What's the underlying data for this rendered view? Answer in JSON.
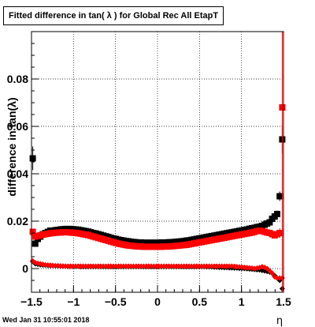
{
  "title": "Fitted difference in tan( λ ) for Global Rec All EtapT",
  "timestamp": "Wed Jan 31 10:55:01 2018",
  "chart_data": {
    "type": "scatter",
    "xlabel": "η",
    "ylabel": "difference in tan(λ)",
    "xlim": [
      -1.5,
      1.5
    ],
    "ylim": [
      -0.01,
      0.1
    ],
    "grid": true,
    "x_ticks": [
      -1.5,
      -1,
      -0.5,
      0,
      0.5,
      1,
      1.5
    ],
    "x_tick_labels": [
      "−1.5",
      "−1",
      "−0.5",
      "0",
      "0.5",
      "1",
      "1.5"
    ],
    "y_ticks": [
      0,
      0.02,
      0.04,
      0.06,
      0.08
    ],
    "y_tick_labels": [
      "0",
      "0.02",
      "0.04",
      "0.06",
      "0.08"
    ],
    "series": [
      {
        "color": "#000000",
        "marker": "square",
        "x": [
          -1.485,
          -1.455,
          -1.425,
          -1.395,
          -1.365,
          -1.335,
          -1.305,
          -1.275,
          -1.245,
          -1.215,
          -1.185,
          -1.155,
          -1.125,
          -1.095,
          -1.065,
          -1.035,
          -1.005,
          -0.975,
          -0.945,
          -0.915,
          -0.885,
          -0.855,
          -0.825,
          -0.795,
          -0.765,
          -0.735,
          -0.705,
          -0.675,
          -0.645,
          -0.615,
          -0.585,
          -0.555,
          -0.525,
          -0.495,
          -0.465,
          -0.435,
          -0.405,
          -0.375,
          -0.345,
          -0.315,
          -0.285,
          -0.255,
          -0.225,
          -0.195,
          -0.165,
          -0.135,
          -0.105,
          -0.075,
          -0.045,
          -0.015,
          0.015,
          0.045,
          0.075,
          0.105,
          0.135,
          0.165,
          0.195,
          0.225,
          0.255,
          0.285,
          0.315,
          0.345,
          0.375,
          0.405,
          0.435,
          0.465,
          0.495,
          0.525,
          0.555,
          0.585,
          0.615,
          0.645,
          0.675,
          0.705,
          0.735,
          0.765,
          0.795,
          0.825,
          0.855,
          0.885,
          0.915,
          0.945,
          0.975,
          1.005,
          1.035,
          1.065,
          1.095,
          1.125,
          1.155,
          1.185,
          1.215,
          1.245,
          1.275,
          1.305,
          1.335,
          1.365,
          1.395,
          1.425,
          1.455,
          1.485
        ],
        "y": [
          0.0465,
          0.0105,
          0.0125,
          0.0135,
          0.0145,
          0.015,
          0.0155,
          0.016,
          0.016,
          0.0162,
          0.0163,
          0.0165,
          0.0166,
          0.0167,
          0.0167,
          0.0167,
          0.0166,
          0.0165,
          0.0164,
          0.0162,
          0.016,
          0.0158,
          0.0156,
          0.0153,
          0.015,
          0.0148,
          0.0145,
          0.0142,
          0.0139,
          0.0136,
          0.0133,
          0.013,
          0.0127,
          0.0125,
          0.0122,
          0.012,
          0.0118,
          0.0116,
          0.0115,
          0.0113,
          0.0112,
          0.0111,
          0.011,
          0.011,
          0.0109,
          0.0109,
          0.0109,
          0.0109,
          0.0109,
          0.0109,
          0.0109,
          0.011,
          0.011,
          0.011,
          0.0111,
          0.0111,
          0.0112,
          0.0113,
          0.0114,
          0.0115,
          0.0116,
          0.0118,
          0.0119,
          0.0121,
          0.0123,
          0.0125,
          0.0127,
          0.0129,
          0.0131,
          0.0133,
          0.0135,
          0.0137,
          0.0139,
          0.0141,
          0.0143,
          0.0145,
          0.0147,
          0.0149,
          0.0151,
          0.0153,
          0.0155,
          0.0157,
          0.0159,
          0.0161,
          0.0163,
          0.0165,
          0.0168,
          0.017,
          0.0172,
          0.0175,
          0.0177,
          0.018,
          0.0185,
          0.019,
          0.0195,
          0.021,
          0.022,
          0.023,
          0.0305,
          0.0545
        ],
        "err": [
          0.005,
          0.001,
          0.0008,
          0.0006,
          0.0005,
          0.0004,
          0.0004,
          0.0004,
          0.0004,
          0.0004,
          0.0004,
          0.0004,
          0.0004,
          0.0004,
          0.0004,
          0.0004,
          0.0004,
          0.0004,
          0.0004,
          0.0004,
          0.0004,
          0.0004,
          0.0004,
          0.0004,
          0.0004,
          0.0004,
          0.0004,
          0.0004,
          0.0004,
          0.0004,
          0.0004,
          0.0004,
          0.0004,
          0.0004,
          0.0004,
          0.0004,
          0.0004,
          0.0004,
          0.0004,
          0.0004,
          0.0004,
          0.0004,
          0.0004,
          0.0004,
          0.0004,
          0.0004,
          0.0004,
          0.0004,
          0.0004,
          0.0004,
          0.0004,
          0.0004,
          0.0004,
          0.0004,
          0.0004,
          0.0004,
          0.0004,
          0.0004,
          0.0004,
          0.0004,
          0.0004,
          0.0004,
          0.0004,
          0.0004,
          0.0004,
          0.0004,
          0.0004,
          0.0004,
          0.0004,
          0.0004,
          0.0004,
          0.0004,
          0.0004,
          0.0004,
          0.0004,
          0.0004,
          0.0004,
          0.0004,
          0.0004,
          0.0004,
          0.0004,
          0.0004,
          0.0004,
          0.0004,
          0.0004,
          0.0004,
          0.0004,
          0.0004,
          0.0004,
          0.0005,
          0.0005,
          0.0005,
          0.0006,
          0.0007,
          0.0008,
          0.001,
          0.0012,
          0.0015,
          0.002,
          0.006
        ]
      },
      {
        "color": "#000000",
        "marker": "diamond",
        "x": [
          -1.485,
          -1.455,
          -1.425,
          -1.395,
          -1.365,
          -1.335,
          -1.305,
          -1.275,
          -1.245,
          -1.215,
          -1.185,
          -1.155,
          -1.125,
          -1.095,
          -1.065,
          -1.035,
          -1.005,
          -0.975,
          -0.945,
          -0.915,
          -0.885,
          -0.855,
          -0.825,
          -0.795,
          -0.765,
          -0.735,
          -0.705,
          -0.675,
          -0.645,
          -0.615,
          -0.585,
          -0.555,
          -0.525,
          -0.495,
          -0.465,
          -0.435,
          -0.405,
          -0.375,
          -0.345,
          -0.315,
          -0.285,
          -0.255,
          -0.225,
          -0.195,
          -0.165,
          -0.135,
          -0.105,
          -0.075,
          -0.045,
          -0.015,
          0.015,
          0.045,
          0.075,
          0.105,
          0.135,
          0.165,
          0.195,
          0.225,
          0.255,
          0.285,
          0.315,
          0.345,
          0.375,
          0.405,
          0.435,
          0.465,
          0.495,
          0.525,
          0.555,
          0.585,
          0.615,
          0.645,
          0.675,
          0.705,
          0.735,
          0.765,
          0.795,
          0.825,
          0.855,
          0.885,
          0.915,
          0.945,
          0.975,
          1.005,
          1.035,
          1.065,
          1.095,
          1.125,
          1.155,
          1.185,
          1.215,
          1.245,
          1.275,
          1.305,
          1.335,
          1.365,
          1.395,
          1.425,
          1.455,
          1.485
        ],
        "y": [
          0.003,
          0.002,
          0.0018,
          0.0016,
          0.0015,
          0.0014,
          0.0013,
          0.0012,
          0.0012,
          0.0011,
          0.0011,
          0.001,
          0.001,
          0.001,
          0.0009,
          0.0009,
          0.0009,
          0.0009,
          0.0009,
          0.0008,
          0.0008,
          0.0008,
          0.0008,
          0.0008,
          0.0008,
          0.0008,
          0.0008,
          0.0008,
          0.0008,
          0.0008,
          0.0008,
          0.0008,
          0.0008,
          0.0008,
          0.0008,
          0.0008,
          0.0008,
          0.0008,
          0.0008,
          0.0008,
          0.0008,
          0.0008,
          0.0008,
          0.0008,
          0.0008,
          0.0008,
          0.0008,
          0.0008,
          0.0008,
          0.0008,
          0.0008,
          0.0008,
          0.0008,
          0.0008,
          0.0008,
          0.0008,
          0.0008,
          0.0008,
          0.0008,
          0.0008,
          0.0008,
          0.0008,
          0.0008,
          0.0008,
          0.0008,
          0.0008,
          0.0008,
          0.0008,
          0.0008,
          0.0007,
          0.0007,
          0.0007,
          0.0006,
          0.0006,
          0.0005,
          0.0005,
          0.0004,
          0.0004,
          0.0003,
          0.0003,
          0.0002,
          0.0002,
          0.0001,
          0.0001,
          0.0,
          -0.0001,
          -0.0002,
          -0.0003,
          -0.0004,
          -0.0005,
          -0.0006,
          -0.0008,
          -0.001,
          -0.0012,
          -0.0015,
          -0.002,
          -0.003,
          -0.004,
          -0.005,
          -0.0085
        ],
        "err": []
      },
      {
        "color": "#ff0000",
        "marker": "square",
        "x": [
          -1.485,
          -1.455,
          -1.425,
          -1.395,
          -1.365,
          -1.335,
          -1.305,
          -1.275,
          -1.245,
          -1.215,
          -1.185,
          -1.155,
          -1.125,
          -1.095,
          -1.065,
          -1.035,
          -1.005,
          -0.975,
          -0.945,
          -0.915,
          -0.885,
          -0.855,
          -0.825,
          -0.795,
          -0.765,
          -0.735,
          -0.705,
          -0.675,
          -0.645,
          -0.615,
          -0.585,
          -0.555,
          -0.525,
          -0.495,
          -0.465,
          -0.435,
          -0.405,
          -0.375,
          -0.345,
          -0.315,
          -0.285,
          -0.255,
          -0.225,
          -0.195,
          -0.165,
          -0.135,
          -0.105,
          -0.075,
          -0.045,
          -0.015,
          0.015,
          0.045,
          0.075,
          0.105,
          0.135,
          0.165,
          0.195,
          0.225,
          0.255,
          0.285,
          0.315,
          0.345,
          0.375,
          0.405,
          0.435,
          0.465,
          0.495,
          0.525,
          0.555,
          0.585,
          0.615,
          0.645,
          0.675,
          0.705,
          0.735,
          0.765,
          0.795,
          0.825,
          0.855,
          0.885,
          0.915,
          0.945,
          0.975,
          1.005,
          1.035,
          1.065,
          1.095,
          1.125,
          1.155,
          1.185,
          1.215,
          1.245,
          1.275,
          1.305,
          1.335,
          1.365,
          1.395,
          1.425,
          1.455,
          1.485
        ],
        "y": [
          0.0155,
          0.0135,
          0.0138,
          0.014,
          0.0143,
          0.0145,
          0.0147,
          0.0149,
          0.015,
          0.0151,
          0.0152,
          0.0152,
          0.0153,
          0.0153,
          0.0153,
          0.0152,
          0.0151,
          0.015,
          0.0149,
          0.0147,
          0.0145,
          0.0143,
          0.0141,
          0.0138,
          0.0135,
          0.0132,
          0.0129,
          0.0126,
          0.0123,
          0.012,
          0.0117,
          0.0114,
          0.0111,
          0.0108,
          0.0105,
          0.0103,
          0.0101,
          0.0099,
          0.0097,
          0.0096,
          0.0095,
          0.0094,
          0.0093,
          0.0093,
          0.0092,
          0.0092,
          0.0092,
          0.0092,
          0.0092,
          0.0092,
          0.0092,
          0.0092,
          0.0093,
          0.0093,
          0.0093,
          0.0094,
          0.0095,
          0.0096,
          0.0097,
          0.0098,
          0.0099,
          0.01,
          0.0102,
          0.0104,
          0.0106,
          0.0108,
          0.011,
          0.0112,
          0.0114,
          0.0116,
          0.0118,
          0.012,
          0.0122,
          0.0124,
          0.0126,
          0.0128,
          0.013,
          0.0132,
          0.0134,
          0.0136,
          0.0138,
          0.014,
          0.0142,
          0.0144,
          0.0146,
          0.0148,
          0.015,
          0.0152,
          0.0155,
          0.0158,
          0.016,
          0.0158,
          0.0155,
          0.0152,
          0.015,
          0.0145,
          0.014,
          0.0145,
          0.015,
          0.068
        ],
        "err": [
          0.001,
          0.0008,
          0.0006,
          0.0005,
          0.0004,
          0.0004,
          0.0004,
          0.0004,
          0.0004,
          0.0004,
          0.0004,
          0.0004,
          0.0004,
          0.0004,
          0.0004,
          0.0004,
          0.0004,
          0.0004,
          0.0004,
          0.0004,
          0.0004,
          0.0004,
          0.0004,
          0.0004,
          0.0004,
          0.0004,
          0.0004,
          0.0004,
          0.0004,
          0.0004,
          0.0004,
          0.0004,
          0.0004,
          0.0004,
          0.0004,
          0.0004,
          0.0004,
          0.0004,
          0.0004,
          0.0004,
          0.0004,
          0.0004,
          0.0004,
          0.0004,
          0.0004,
          0.0004,
          0.0004,
          0.0004,
          0.0004,
          0.0004,
          0.0004,
          0.0004,
          0.0004,
          0.0004,
          0.0004,
          0.0004,
          0.0004,
          0.0004,
          0.0004,
          0.0004,
          0.0004,
          0.0004,
          0.0004,
          0.0004,
          0.0004,
          0.0004,
          0.0004,
          0.0004,
          0.0004,
          0.0004,
          0.0004,
          0.0004,
          0.0004,
          0.0004,
          0.0004,
          0.0004,
          0.0004,
          0.0004,
          0.0004,
          0.0004,
          0.0004,
          0.0004,
          0.0004,
          0.0004,
          0.0004,
          0.0004,
          0.0004,
          0.0004,
          0.0004,
          0.0005,
          0.0005,
          0.0005,
          0.0006,
          0.0007,
          0.0008,
          0.001,
          0.0012,
          0.0015,
          0.002,
          0.09
        ]
      },
      {
        "color": "#ff0000",
        "marker": "diamond",
        "x": [
          -1.485,
          -1.455,
          -1.425,
          -1.395,
          -1.365,
          -1.335,
          -1.305,
          -1.275,
          -1.245,
          -1.215,
          -1.185,
          -1.155,
          -1.125,
          -1.095,
          -1.065,
          -1.035,
          -1.005,
          -0.975,
          -0.945,
          -0.915,
          -0.885,
          -0.855,
          -0.825,
          -0.795,
          -0.765,
          -0.735,
          -0.705,
          -0.675,
          -0.645,
          -0.615,
          -0.585,
          -0.555,
          -0.525,
          -0.495,
          -0.465,
          -0.435,
          -0.405,
          -0.375,
          -0.345,
          -0.315,
          -0.285,
          -0.255,
          -0.225,
          -0.195,
          -0.165,
          -0.135,
          -0.105,
          -0.075,
          -0.045,
          -0.015,
          0.015,
          0.045,
          0.075,
          0.105,
          0.135,
          0.165,
          0.195,
          0.225,
          0.255,
          0.285,
          0.315,
          0.345,
          0.375,
          0.405,
          0.435,
          0.465,
          0.495,
          0.525,
          0.555,
          0.585,
          0.615,
          0.645,
          0.675,
          0.705,
          0.735,
          0.765,
          0.795,
          0.825,
          0.855,
          0.885,
          0.915,
          0.945,
          0.975,
          1.005,
          1.035,
          1.065,
          1.095,
          1.125,
          1.155,
          1.185,
          1.215,
          1.245,
          1.275,
          1.305,
          1.335,
          1.365,
          1.395,
          1.425,
          1.455,
          1.485
        ],
        "y": [
          0.0032,
          0.0025,
          0.0022,
          0.002,
          0.0018,
          0.0016,
          0.0015,
          0.0014,
          0.0013,
          0.0012,
          0.0012,
          0.0011,
          0.0011,
          0.001,
          0.001,
          0.001,
          0.001,
          0.001,
          0.001,
          0.001,
          0.001,
          0.001,
          0.001,
          0.001,
          0.001,
          0.001,
          0.001,
          0.001,
          0.001,
          0.001,
          0.001,
          0.001,
          0.001,
          0.001,
          0.001,
          0.001,
          0.001,
          0.001,
          0.001,
          0.001,
          0.001,
          0.001,
          0.001,
          0.001,
          0.001,
          0.001,
          0.001,
          0.001,
          0.001,
          0.001,
          0.001,
          0.001,
          0.001,
          0.001,
          0.001,
          0.001,
          0.001,
          0.001,
          0.001,
          0.001,
          0.001,
          0.001,
          0.001,
          0.001,
          0.001,
          0.001,
          0.001,
          0.001,
          0.001,
          0.001,
          0.001,
          0.001,
          0.001,
          0.001,
          0.001,
          0.001,
          0.001,
          0.001,
          0.001,
          0.001,
          0.0009,
          0.0008,
          0.0007,
          0.0006,
          0.0005,
          0.0004,
          0.0003,
          0.0002,
          0.0,
          0.0002,
          0.0004,
          0.0008,
          0.0005,
          0.0,
          -0.001,
          -0.002,
          -0.0035,
          -0.004,
          -0.004,
          -0.004
        ],
        "err": []
      }
    ]
  }
}
